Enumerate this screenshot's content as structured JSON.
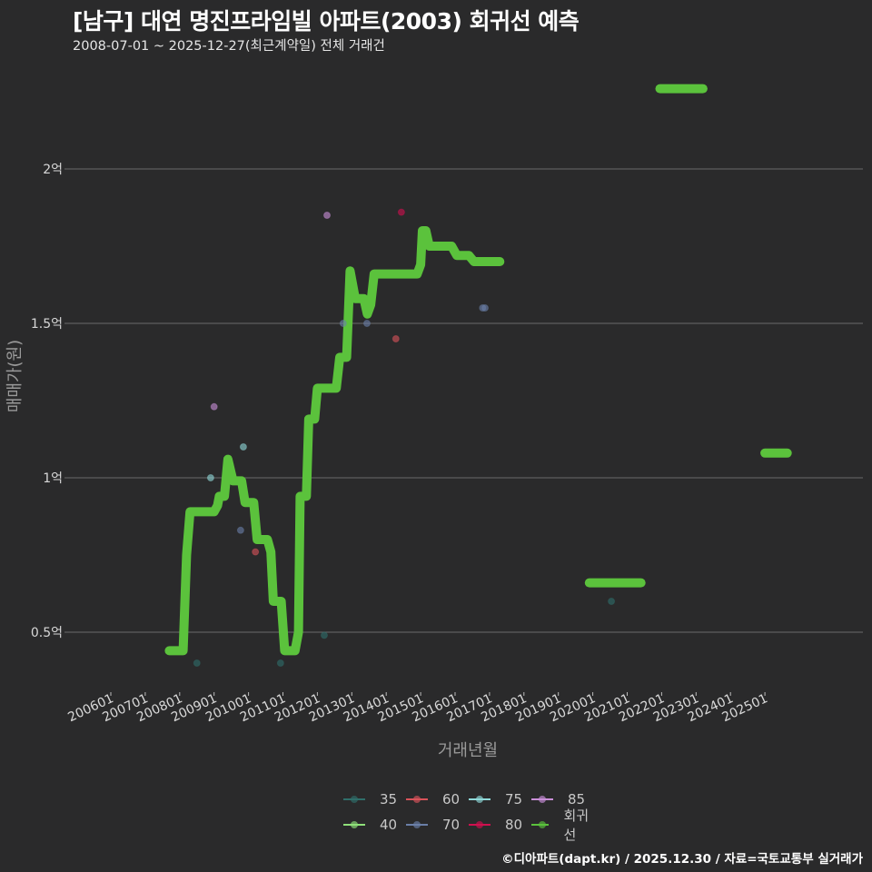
{
  "header": {
    "title": "[남구] 대연 명진프라임빌 아파트(2003) 회귀선 예측",
    "subtitle": "2008-07-01 ~ 2025-12-27(최근계약일) 전체 거래건"
  },
  "footer": {
    "credit": "©디아파트(dapt.kr) / 2025.12.30 / 자료=국토교통부 실거래가"
  },
  "colors": {
    "background": "#2a2a2b",
    "grid": "#6b6b6b",
    "regression": "#5bc23c",
    "s35": "#2f6e6a",
    "s40": "#8fe07a",
    "s60": "#d9535a",
    "s70": "#6a7fa8",
    "s75": "#8fd8d8",
    "s80": "#d0104f",
    "s85": "#c98fd8"
  },
  "legend": {
    "items": [
      {
        "label": "35",
        "color": "#2f6e6a"
      },
      {
        "label": "60",
        "color": "#d9535a"
      },
      {
        "label": "75",
        "color": "#8fd8d8"
      },
      {
        "label": "85",
        "color": "#c98fd8"
      },
      {
        "label": "40",
        "color": "#8fe07a"
      },
      {
        "label": "70",
        "color": "#6a7fa8"
      },
      {
        "label": "80",
        "color": "#d0104f"
      },
      {
        "label": "회귀선",
        "color": "#5bc23c"
      }
    ]
  },
  "chart_data": {
    "type": "scatter",
    "title": "[남구] 대연 명진프라임빌 아파트(2003) 회귀선 예측",
    "subtitle": "2008-07-01 ~ 2025-12-27(최근계약일) 전체 거래건",
    "xlabel": "거래년월",
    "ylabel": "매매가(원)",
    "x_ticks": [
      "200601",
      "200701",
      "200801",
      "200901",
      "201001",
      "201101",
      "201201",
      "201301",
      "201401",
      "201501",
      "201601",
      "201701",
      "201801",
      "201901",
      "202001",
      "202101",
      "202201",
      "202301",
      "202401",
      "202501"
    ],
    "y_ticks": [
      {
        "value": 0.5,
        "label": "0.5억"
      },
      {
        "value": 1.0,
        "label": "1억"
      },
      {
        "value": 1.5,
        "label": "1.5억"
      },
      {
        "value": 2.0,
        "label": "2억"
      }
    ],
    "ylim": [
      0.3,
      2.37
    ],
    "xlim": [
      2005.0,
      2026.3
    ],
    "grid": true,
    "legend_position": "bottom",
    "y_unit": "억원",
    "series": [
      {
        "name": "35",
        "points": [
          [
            2008.5,
            0.4
          ],
          [
            2010.93,
            0.4
          ],
          [
            2012.2,
            0.49
          ],
          [
            2020.54,
            0.6
          ]
        ]
      },
      {
        "name": "40",
        "points": []
      },
      {
        "name": "60",
        "points": [
          [
            2010.2,
            0.76
          ],
          [
            2014.28,
            1.45
          ]
        ]
      },
      {
        "name": "70",
        "points": [
          [
            2009.77,
            0.83
          ],
          [
            2012.75,
            1.5
          ],
          [
            2013.44,
            1.5
          ],
          [
            2016.8,
            1.55
          ],
          [
            2016.87,
            1.55
          ]
        ]
      },
      {
        "name": "75",
        "points": [
          [
            2008.9,
            1.0
          ],
          [
            2009.85,
            1.1
          ]
        ]
      },
      {
        "name": "80",
        "points": [
          [
            2014.44,
            1.86
          ]
        ]
      },
      {
        "name": "85",
        "points": [
          [
            2009.0,
            1.23
          ],
          [
            2012.28,
            1.85
          ]
        ]
      }
    ],
    "regression": {
      "name": "회귀선",
      "segments": [
        [
          [
            2007.7,
            0.44
          ],
          [
            2008.1,
            0.44
          ],
          [
            2008.2,
            0.75
          ],
          [
            2008.3,
            0.89
          ],
          [
            2009.0,
            0.89
          ],
          [
            2009.1,
            0.91
          ],
          [
            2009.15,
            0.94
          ],
          [
            2009.3,
            0.94
          ],
          [
            2009.4,
            1.06
          ],
          [
            2009.55,
            0.99
          ],
          [
            2009.8,
            0.99
          ],
          [
            2009.9,
            0.92
          ],
          [
            2010.15,
            0.92
          ],
          [
            2010.25,
            0.8
          ],
          [
            2010.55,
            0.8
          ],
          [
            2010.65,
            0.76
          ],
          [
            2010.72,
            0.6
          ],
          [
            2010.95,
            0.6
          ],
          [
            2011.05,
            0.44
          ],
          [
            2011.35,
            0.44
          ],
          [
            2011.45,
            0.5
          ],
          [
            2011.5,
            0.94
          ],
          [
            2011.68,
            0.94
          ],
          [
            2011.75,
            1.19
          ],
          [
            2011.92,
            1.19
          ],
          [
            2012.0,
            1.29
          ],
          [
            2012.55,
            1.29
          ],
          [
            2012.65,
            1.39
          ],
          [
            2012.85,
            1.39
          ],
          [
            2012.95,
            1.67
          ],
          [
            2013.1,
            1.58
          ],
          [
            2013.35,
            1.58
          ],
          [
            2013.45,
            1.53
          ],
          [
            2013.55,
            1.56
          ],
          [
            2013.65,
            1.66
          ],
          [
            2014.2,
            1.66
          ],
          [
            2014.3,
            1.66
          ],
          [
            2014.9,
            1.66
          ],
          [
            2015.0,
            1.69
          ],
          [
            2015.05,
            1.8
          ],
          [
            2015.15,
            1.8
          ],
          [
            2015.25,
            1.75
          ],
          [
            2015.9,
            1.75
          ],
          [
            2016.05,
            1.72
          ],
          [
            2016.4,
            1.72
          ],
          [
            2016.55,
            1.7
          ],
          [
            2017.3,
            1.7
          ]
        ],
        [
          [
            2019.9,
            0.66
          ],
          [
            2021.4,
            0.66
          ]
        ],
        [
          [
            2021.95,
            2.26
          ],
          [
            2023.2,
            2.26
          ]
        ],
        [
          [
            2025.0,
            1.08
          ],
          [
            2025.65,
            1.08
          ]
        ]
      ]
    }
  }
}
